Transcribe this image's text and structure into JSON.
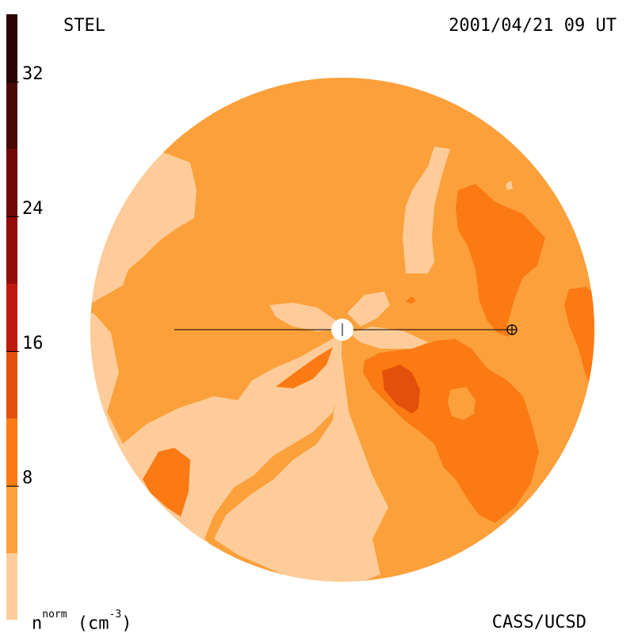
{
  "header": {
    "instrument": "STEL",
    "datetime": "2001/04/21 09 UT"
  },
  "footer": {
    "credit": "CASS/UCSD",
    "unit_base": "n",
    "unit_sup": "norm",
    "unit_rest": " (cm",
    "unit_exp": "-3",
    "unit_close": ")"
  },
  "colorbar": {
    "ticks": [
      "32",
      "24",
      "16",
      "8"
    ],
    "levels": [
      "#2a0503",
      "#4a0806",
      "#6e0b08",
      "#950d0b",
      "#bf1a0d",
      "#e2500c",
      "#fb7a13",
      "#fba03b",
      "#fdcc9a"
    ]
  },
  "map_colors": {
    "light": "#fdcc9a",
    "base": "#fba03b",
    "mid": "#fb7a13",
    "dark": "#e2500c"
  }
}
